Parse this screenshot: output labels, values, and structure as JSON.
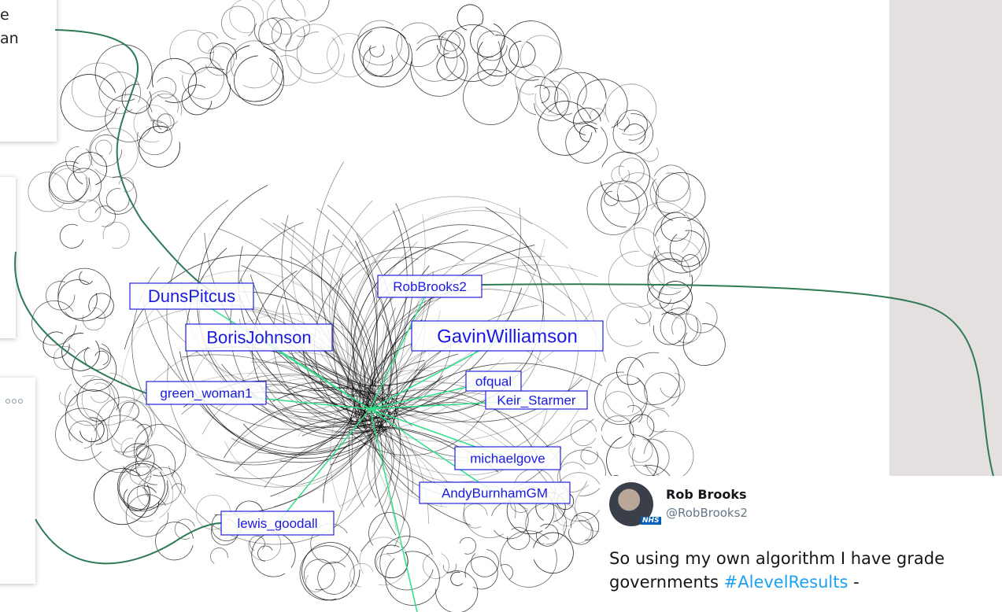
{
  "fragments": {
    "card1_line1": "e",
    "card1_line2": "an"
  },
  "nodes": [
    "DunsPitcus",
    "BorisJohnson",
    "RobBrooks2",
    "GavinWilliamson",
    "ofqual",
    "Keir_Starmer",
    "green_woman1",
    "michaelgove",
    "AndyBurnhamGM",
    "lewis_goodall"
  ],
  "tweet": {
    "name": "Rob Brooks",
    "handle": "@RobBrooks2",
    "line1": "So using my own algorithm I have grade",
    "line2_start": "governments",
    "hashtag": "#AlevelResults",
    "line2_end": "-"
  }
}
